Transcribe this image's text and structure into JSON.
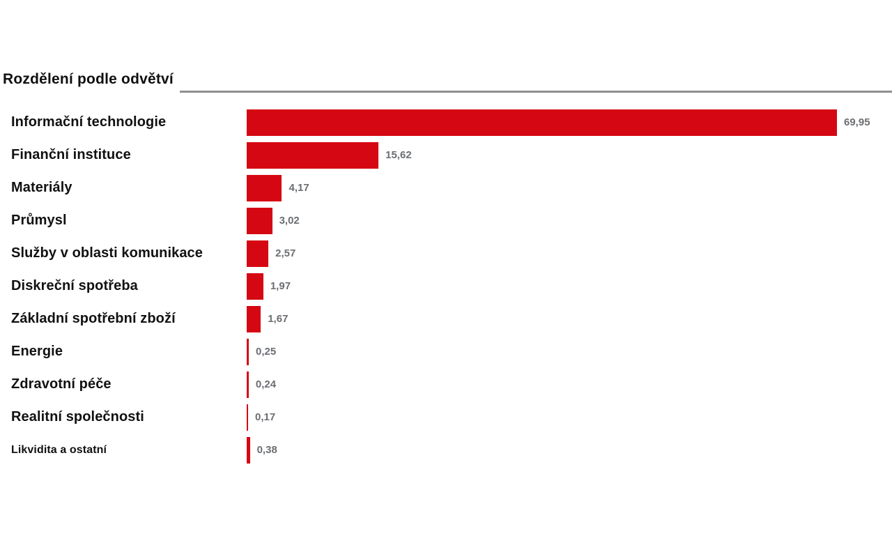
{
  "chart": {
    "title": "Rozdělení podle odvětví"
  },
  "chart_data": {
    "type": "bar",
    "orientation": "horizontal",
    "title": "Rozdělení podle odvětví",
    "categories": [
      "Informační technologie",
      "Finanční instituce",
      "Materiály",
      "Průmysl",
      "Služby v oblasti komunikace",
      "Diskreční spotřeba",
      "Základní spotřební zboží",
      "Energie",
      "Zdravotní péče",
      "Realitní společnosti",
      "Likvidita a ostatní"
    ],
    "values": [
      69.95,
      15.62,
      4.17,
      3.02,
      2.57,
      1.97,
      1.67,
      0.25,
      0.24,
      0.17,
      0.38
    ],
    "value_labels": [
      "69,95",
      "15,62",
      "4,17",
      "3,02",
      "2,57",
      "1,97",
      "1,67",
      "0,25",
      "0,24",
      "0,17",
      "0,38"
    ],
    "bar_color": "#d50712",
    "value_label_color": "#6b6e72",
    "label_color": "#111111",
    "rule_color": "#8f8f8f",
    "xlim": [
      0,
      70
    ],
    "grid": false,
    "legend": false
  }
}
